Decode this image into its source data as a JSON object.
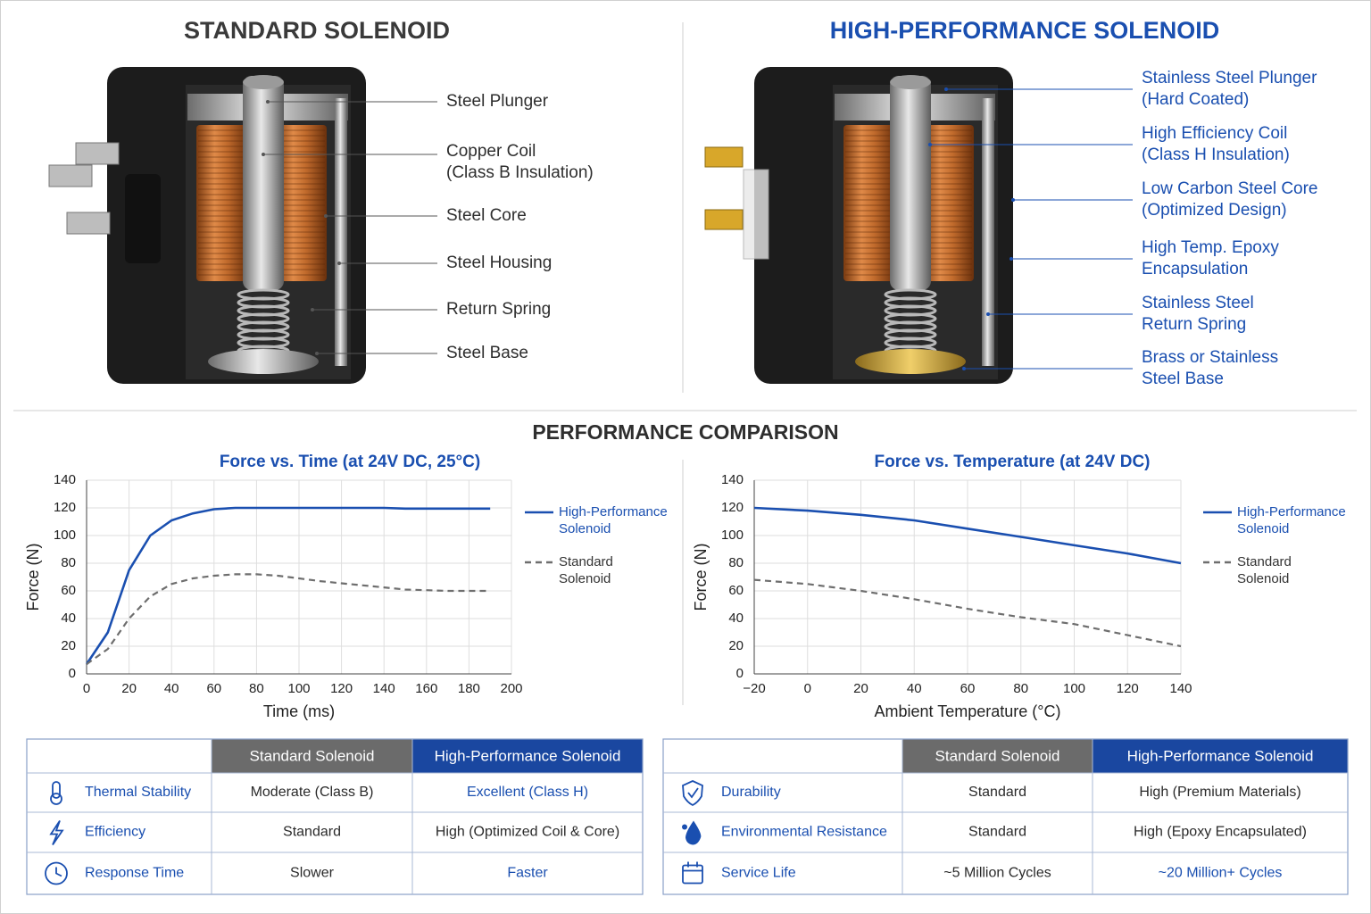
{
  "diagrams": [
    {
      "title": "STANDARD SOLENOID",
      "labels": [
        [
          "Steel Plunger"
        ],
        [
          "Copper Coil",
          "(Class B Insulation)"
        ],
        [
          "Steel Core"
        ],
        [
          "Steel Housing"
        ],
        [
          "Return Spring"
        ],
        [
          "Steel Base"
        ]
      ]
    },
    {
      "title": "HIGH-PERFORMANCE SOLENOID",
      "labels": [
        [
          "Stainless Steel Plunger",
          "(Hard Coated)"
        ],
        [
          "High Efficiency Coil",
          "(Class H Insulation)"
        ],
        [
          "Low Carbon Steel Core",
          "(Optimized Design)"
        ],
        [
          "High Temp. Epoxy",
          "Encapsulation"
        ],
        [
          "Stainless Steel",
          "Return Spring"
        ],
        [
          "Brass or Stainless",
          "Steel Base"
        ]
      ]
    }
  ],
  "comparison_title": "PERFORMANCE COMPARISON",
  "chart_data": [
    {
      "type": "line",
      "title": "Force vs. Time (at 24V DC, 25°C)",
      "x_label": "Time (ms)",
      "y_label": "Force (N)",
      "x": [
        0,
        10,
        20,
        30,
        40,
        50,
        60,
        70,
        80,
        90,
        100,
        110,
        120,
        130,
        140,
        150,
        160,
        170,
        180,
        190
      ],
      "series": [
        {
          "name": "High-Performance Solenoid",
          "color": "#1a4fb0",
          "style": "solid",
          "values": [
            7,
            30,
            75,
            100,
            111,
            116,
            119,
            120,
            120,
            120,
            120,
            120,
            120,
            120,
            120,
            119.5,
            119.5,
            119.5,
            119.5,
            119.5
          ]
        },
        {
          "name": "Standard Solenoid",
          "color": "#6e6e6e",
          "style": "dashed",
          "values": [
            7,
            18,
            40,
            56,
            65,
            69,
            71,
            72,
            72,
            71,
            69,
            67,
            65.5,
            64,
            62.5,
            61,
            60.5,
            60,
            60,
            60
          ]
        }
      ],
      "xlim": [
        0,
        200
      ],
      "xticks": [
        0,
        20,
        40,
        60,
        80,
        100,
        120,
        140,
        160,
        180,
        200
      ],
      "ylim": [
        0,
        140
      ],
      "yticks": [
        0,
        20,
        40,
        60,
        80,
        100,
        120,
        140
      ],
      "grid": true,
      "legend": "right"
    },
    {
      "type": "line",
      "title": "Force vs. Temperature (at 24V DC)",
      "x_label": "Ambient Temperature (°C)",
      "y_label": "Force (N)",
      "x": [
        -20,
        0,
        20,
        40,
        60,
        80,
        100,
        120,
        140
      ],
      "series": [
        {
          "name": "High-Performance Solenoid",
          "color": "#1a4fb0",
          "style": "solid",
          "values": [
            120,
            118,
            115,
            111,
            105,
            99,
            93,
            87,
            80
          ]
        },
        {
          "name": "Standard Solenoid",
          "color": "#6e6e6e",
          "style": "dashed",
          "values": [
            68,
            65,
            60,
            54,
            47,
            41,
            36,
            28,
            20
          ]
        }
      ],
      "xlim": [
        -20,
        140
      ],
      "xticks": [
        {
          "value": -20,
          "label": "−20"
        },
        0,
        20,
        40,
        60,
        80,
        100,
        120,
        140
      ],
      "ylim": [
        0,
        140
      ],
      "yticks": [
        0,
        20,
        40,
        60,
        80,
        100,
        120,
        140
      ],
      "grid": true,
      "legend": "right"
    }
  ],
  "tables": [
    {
      "columns": [
        "Standard Solenoid",
        "High-Performance Solenoid"
      ],
      "rows": [
        {
          "label": "Thermal Stability",
          "cells": [
            "Moderate (Class B)",
            "Excellent (Class H)"
          ]
        },
        {
          "label": "Efficiency",
          "cells": [
            "Standard",
            "High (Optimized Coil & Core)"
          ]
        },
        {
          "label": "Response Time",
          "cells": [
            "Slower",
            "Faster"
          ]
        }
      ]
    },
    {
      "columns": [
        "Standard Solenoid",
        "High-Performance Solenoid"
      ],
      "rows": [
        {
          "label": "Durability",
          "cells": [
            "Standard",
            "High (Premium Materials)"
          ]
        },
        {
          "label": "Environmental Resistance",
          "cells": [
            "Standard",
            "High (Epoxy Encapsulated)"
          ]
        },
        {
          "label": "Service Life",
          "cells": [
            "~5 Million Cycles",
            "~20 Million+ Cycles"
          ]
        }
      ]
    }
  ]
}
